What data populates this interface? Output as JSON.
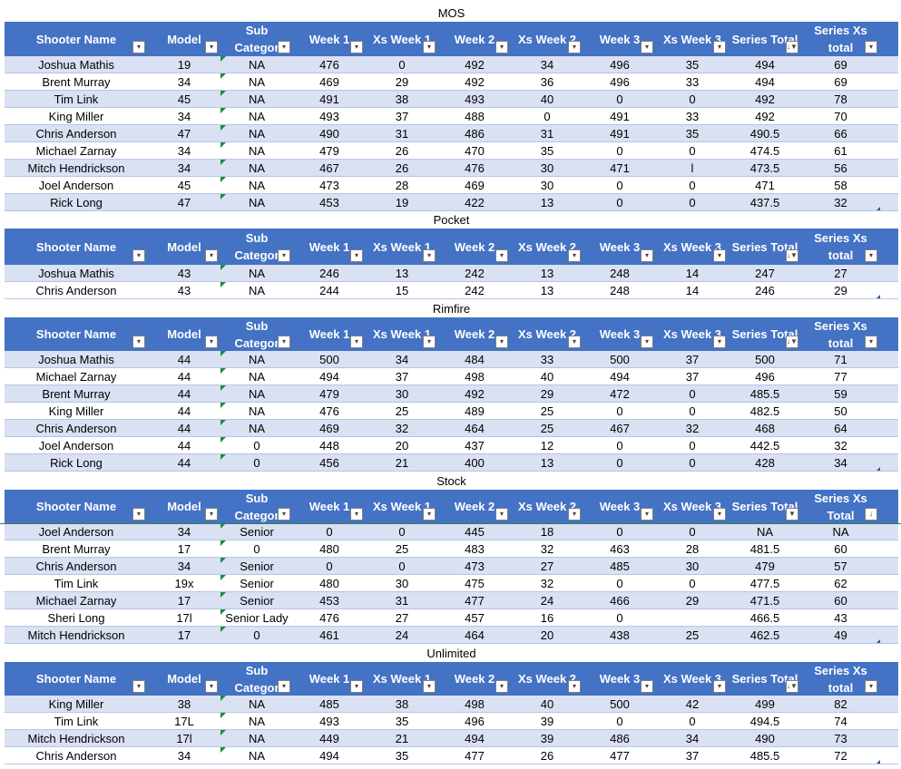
{
  "headers": [
    "Shooter Name",
    "Model",
    "Sub Category",
    "Week 1",
    "Xs Week 1",
    "Week 2",
    "Xs Week 2",
    "Week 3",
    "Xs Week 3",
    "Series Total",
    "Series Xs total"
  ],
  "header_display": [
    [
      "Shooter Name"
    ],
    [
      "Model"
    ],
    [
      "Sub",
      "Categor"
    ],
    [
      "Week 1"
    ],
    [
      "Xs Week 1"
    ],
    [
      "Week 2"
    ],
    [
      "Xs Week 2"
    ],
    [
      "Week 3"
    ],
    [
      "Xs Week 3"
    ],
    [
      "Series Total"
    ],
    [
      "Series Xs",
      "total"
    ]
  ],
  "header_display_stock_last": [
    "Series Xs",
    "Total"
  ],
  "icons": {
    "dropdown": "dropdown-arrow-icon",
    "sort_filter": "sort-filter-icon",
    "filter": "filter-icon",
    "sort_desc": "sort-desc-icon",
    "comment": "green-triangle-indicator"
  },
  "colors": {
    "header_bg": "#4472c4",
    "band_bg": "#d9e1f2",
    "row_border": "#b4c6e7",
    "indicator": "#1e8a3c"
  },
  "tables": [
    {
      "title": "MOS",
      "header_icons": [
        "dropdown",
        "dropdown",
        "dropdown",
        "dropdown",
        "dropdown",
        "dropdown",
        "dropdown",
        "dropdown",
        "dropdown",
        "sort_filter",
        "dropdown"
      ],
      "rows": [
        [
          "Joshua Mathis",
          "19",
          "NA",
          "476",
          "0",
          "492",
          "34",
          "496",
          "35",
          "494",
          "69"
        ],
        [
          "Brent Murray",
          "34",
          "NA",
          "469",
          "29",
          "492",
          "36",
          "496",
          "33",
          "494",
          "69"
        ],
        [
          "Tim Link",
          "45",
          "NA",
          "491",
          "38",
          "493",
          "40",
          "0",
          "0",
          "492",
          "78"
        ],
        [
          "King Miller",
          "34",
          "NA",
          "493",
          "37",
          "488",
          "0",
          "491",
          "33",
          "492",
          "70"
        ],
        [
          "Chris Anderson",
          "47",
          "NA",
          "490",
          "31",
          "486",
          "31",
          "491",
          "35",
          "490.5",
          "66"
        ],
        [
          "Michael Zarnay",
          "34",
          "NA",
          "479",
          "26",
          "470",
          "35",
          "0",
          "0",
          "474.5",
          "61"
        ],
        [
          "Mitch Hendrickson",
          "34",
          "NA",
          "467",
          "26",
          "476",
          "30",
          "471",
          "l",
          "473.5",
          "56"
        ],
        [
          "Joel Anderson",
          "45",
          "NA",
          "473",
          "28",
          "469",
          "30",
          "0",
          "0",
          "471",
          "58"
        ],
        [
          "Rick Long",
          "47",
          "NA",
          "453",
          "19",
          "422",
          "13",
          "0",
          "0",
          "437.5",
          "32"
        ]
      ]
    },
    {
      "title": "Pocket",
      "header_icons": [
        "dropdown",
        "dropdown",
        "dropdown",
        "dropdown",
        "dropdown",
        "dropdown",
        "dropdown",
        "dropdown",
        "dropdown",
        "sort_filter",
        "dropdown"
      ],
      "rows": [
        [
          "Joshua Mathis",
          "43",
          "NA",
          "246",
          "13",
          "242",
          "13",
          "248",
          "14",
          "247",
          "27"
        ],
        [
          "Chris Anderson",
          "43",
          "NA",
          "244",
          "15",
          "242",
          "13",
          "248",
          "14",
          "246",
          "29"
        ]
      ]
    },
    {
      "title": "Rimfire",
      "header_icons": [
        "dropdown",
        "dropdown",
        "dropdown",
        "dropdown",
        "dropdown",
        "dropdown",
        "dropdown",
        "dropdown",
        "dropdown",
        "sort_filter",
        "dropdown"
      ],
      "rows": [
        [
          "Joshua Mathis",
          "44",
          "NA",
          "500",
          "34",
          "484",
          "33",
          "500",
          "37",
          "500",
          "71"
        ],
        [
          "Michael Zarnay",
          "44",
          "NA",
          "494",
          "37",
          "498",
          "40",
          "494",
          "37",
          "496",
          "77"
        ],
        [
          "Brent Murray",
          "44",
          "NA",
          "479",
          "30",
          "492",
          "29",
          "472",
          "0",
          "485.5",
          "59"
        ],
        [
          "King Miller",
          "44",
          "NA",
          "476",
          "25",
          "489",
          "25",
          "0",
          "0",
          "482.5",
          "50"
        ],
        [
          "Chris Anderson",
          "44",
          "NA",
          "469",
          "32",
          "464",
          "25",
          "467",
          "32",
          "468",
          "64"
        ],
        [
          "Joel Anderson",
          "44",
          "0",
          "448",
          "20",
          "437",
          "12",
          "0",
          "0",
          "442.5",
          "32"
        ],
        [
          "Rick Long",
          "44",
          "0",
          "456",
          "21",
          "400",
          "13",
          "0",
          "0",
          "428",
          "34"
        ]
      ]
    },
    {
      "title": "Stock",
      "header_icons": [
        "dropdown",
        "dropdown",
        "dropdown",
        "dropdown",
        "dropdown",
        "dropdown",
        "dropdown",
        "dropdown",
        "dropdown",
        "filter",
        "sort_desc"
      ],
      "rows": [
        [
          "Joel Anderson",
          "34",
          "Senior",
          "0",
          "0",
          "445",
          "18",
          "0",
          "0",
          "NA",
          "NA"
        ],
        [
          "Brent Murray",
          "17",
          "0",
          "480",
          "25",
          "483",
          "32",
          "463",
          "28",
          "481.5",
          "60"
        ],
        [
          "Chris Anderson",
          "34",
          "Senior",
          "0",
          "0",
          "473",
          "27",
          "485",
          "30",
          "479",
          "57"
        ],
        [
          "Tim Link",
          "19x",
          "Senior",
          "480",
          "30",
          "475",
          "32",
          "0",
          "0",
          "477.5",
          "62"
        ],
        [
          "Michael Zarnay",
          "17",
          "Senior",
          "453",
          "31",
          "477",
          "24",
          "466",
          "29",
          "471.5",
          "60"
        ],
        [
          "Sheri Long",
          "17l",
          "Senior Lady",
          "476",
          "27",
          "457",
          "16",
          "0",
          "",
          "466.5",
          "43"
        ],
        [
          "Mitch Hendrickson",
          "17",
          "0",
          "461",
          "24",
          "464",
          "20",
          "438",
          "25",
          "462.5",
          "49"
        ]
      ]
    },
    {
      "title": "Unlimited",
      "header_icons": [
        "dropdown",
        "dropdown",
        "dropdown",
        "dropdown",
        "dropdown",
        "dropdown",
        "dropdown",
        "dropdown",
        "dropdown",
        "sort_filter",
        "dropdown"
      ],
      "rows": [
        [
          "King Miller",
          "38",
          "NA",
          "485",
          "38",
          "498",
          "40",
          "500",
          "42",
          "499",
          "82"
        ],
        [
          "Tim Link",
          "17L",
          "NA",
          "493",
          "35",
          "496",
          "39",
          "0",
          "0",
          "494.5",
          "74"
        ],
        [
          "Mitch Hendrickson",
          "17l",
          "NA",
          "449",
          "21",
          "494",
          "39",
          "486",
          "34",
          "490",
          "73"
        ],
        [
          "Chris Anderson",
          "34",
          "NA",
          "494",
          "35",
          "477",
          "26",
          "477",
          "37",
          "485.5",
          "72"
        ]
      ]
    }
  ]
}
